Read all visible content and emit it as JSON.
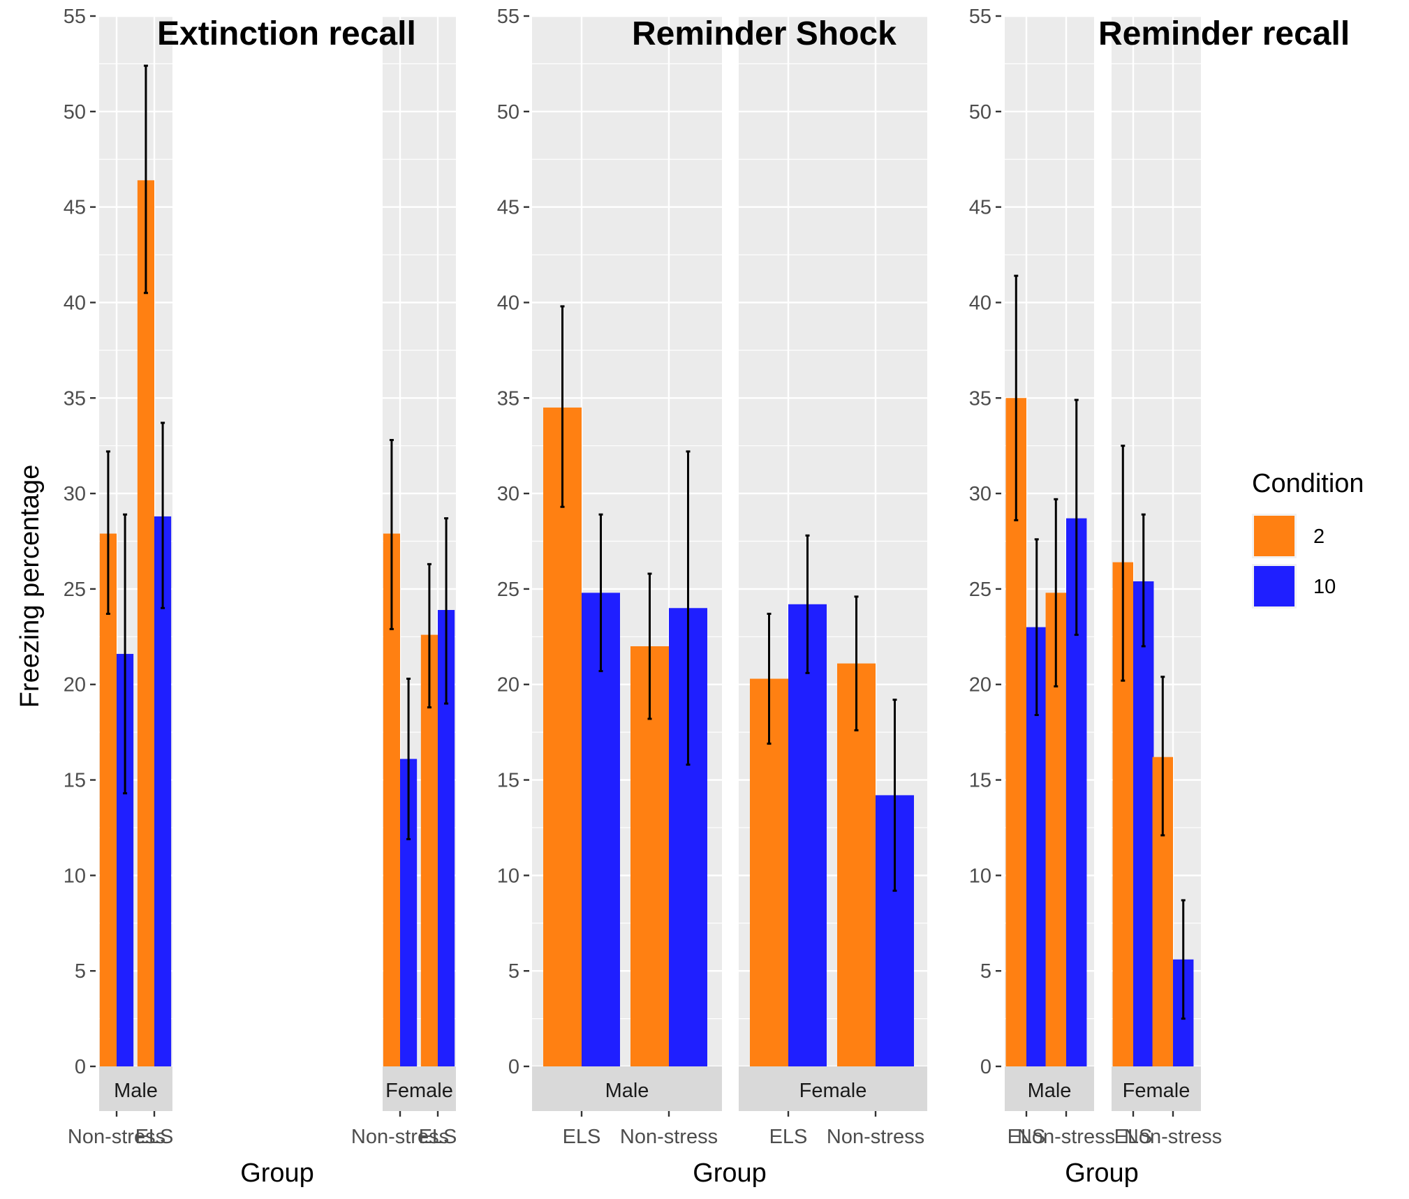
{
  "chart_data": {
    "type": "bar",
    "ylabel": "Freezing percentage",
    "xlabel": "Group",
    "ylim": [
      0,
      55
    ],
    "yticks": [
      "0",
      "5",
      "10",
      "15",
      "20",
      "25",
      "30",
      "35",
      "40",
      "45",
      "50",
      "55"
    ],
    "grid": true,
    "legend": {
      "title": "Condition",
      "position": "right",
      "entries": [
        {
          "label": "2",
          "color": "#FF8012"
        },
        {
          "label": "10",
          "color": "#1F1FFF"
        }
      ]
    },
    "panels": [
      {
        "title": "Extinction recall",
        "facets": [
          {
            "label": "Male",
            "groups": [
              {
                "label": "Non-stress",
                "bars": [
                  {
                    "condition": "2",
                    "value": 27.9,
                    "err_low": 23.7,
                    "err_high": 32.2
                  },
                  {
                    "condition": "10",
                    "value": 21.6,
                    "err_low": 14.3,
                    "err_high": 28.9
                  }
                ]
              },
              {
                "label": "ELS",
                "bars": [
                  {
                    "condition": "2",
                    "value": 46.4,
                    "err_low": 40.5,
                    "err_high": 52.4
                  },
                  {
                    "condition": "10",
                    "value": 28.8,
                    "err_low": 24.0,
                    "err_high": 33.7
                  }
                ]
              }
            ]
          },
          {
            "label": "Female",
            "groups": [
              {
                "label": "Non-stress",
                "bars": [
                  {
                    "condition": "2",
                    "value": 27.9,
                    "err_low": 22.9,
                    "err_high": 32.8
                  },
                  {
                    "condition": "10",
                    "value": 16.1,
                    "err_low": 11.9,
                    "err_high": 20.3
                  }
                ]
              },
              {
                "label": "ELS",
                "bars": [
                  {
                    "condition": "2",
                    "value": 22.6,
                    "err_low": 18.8,
                    "err_high": 26.3
                  },
                  {
                    "condition": "10",
                    "value": 23.9,
                    "err_low": 19.0,
                    "err_high": 28.7
                  }
                ]
              }
            ]
          }
        ]
      },
      {
        "title": "Reminder Shock",
        "facets": [
          {
            "label": "Male",
            "groups": [
              {
                "label": "ELS",
                "bars": [
                  {
                    "condition": "2",
                    "value": 34.5,
                    "err_low": 29.3,
                    "err_high": 39.8
                  },
                  {
                    "condition": "10",
                    "value": 24.8,
                    "err_low": 20.7,
                    "err_high": 28.9
                  }
                ]
              },
              {
                "label": "Non-stress",
                "bars": [
                  {
                    "condition": "2",
                    "value": 22.0,
                    "err_low": 18.2,
                    "err_high": 25.8
                  },
                  {
                    "condition": "10",
                    "value": 24.0,
                    "err_low": 15.8,
                    "err_high": 32.2
                  }
                ]
              }
            ]
          },
          {
            "label": "Female",
            "groups": [
              {
                "label": "ELS",
                "bars": [
                  {
                    "condition": "2",
                    "value": 20.3,
                    "err_low": 16.9,
                    "err_high": 23.7
                  },
                  {
                    "condition": "10",
                    "value": 24.2,
                    "err_low": 20.6,
                    "err_high": 27.8
                  }
                ]
              },
              {
                "label": "Non-stress",
                "bars": [
                  {
                    "condition": "2",
                    "value": 21.1,
                    "err_low": 17.6,
                    "err_high": 24.6
                  },
                  {
                    "condition": "10",
                    "value": 14.2,
                    "err_low": 9.2,
                    "err_high": 19.2
                  }
                ]
              }
            ]
          }
        ]
      },
      {
        "title": "Reminder recall",
        "facets": [
          {
            "label": "Male",
            "groups": [
              {
                "label": "ELS",
                "bars": [
                  {
                    "condition": "2",
                    "value": 35.0,
                    "err_low": 28.6,
                    "err_high": 41.4
                  },
                  {
                    "condition": "10",
                    "value": 23.0,
                    "err_low": 18.4,
                    "err_high": 27.6
                  }
                ]
              },
              {
                "label": "Non-stress",
                "bars": [
                  {
                    "condition": "2",
                    "value": 24.8,
                    "err_low": 19.9,
                    "err_high": 29.7
                  },
                  {
                    "condition": "10",
                    "value": 28.7,
                    "err_low": 22.6,
                    "err_high": 34.9
                  }
                ]
              }
            ]
          },
          {
            "label": "Female",
            "groups": [
              {
                "label": "ELS",
                "bars": [
                  {
                    "condition": "2",
                    "value": 26.4,
                    "err_low": 20.2,
                    "err_high": 32.5
                  },
                  {
                    "condition": "10",
                    "value": 25.4,
                    "err_low": 22.0,
                    "err_high": 28.9
                  }
                ]
              },
              {
                "label": "Non-stress",
                "bars": [
                  {
                    "condition": "2",
                    "value": 16.2,
                    "err_low": 12.1,
                    "err_high": 20.4
                  },
                  {
                    "condition": "10",
                    "value": 5.6,
                    "err_low": 2.5,
                    "err_high": 8.7
                  }
                ]
              }
            ]
          }
        ]
      }
    ]
  }
}
